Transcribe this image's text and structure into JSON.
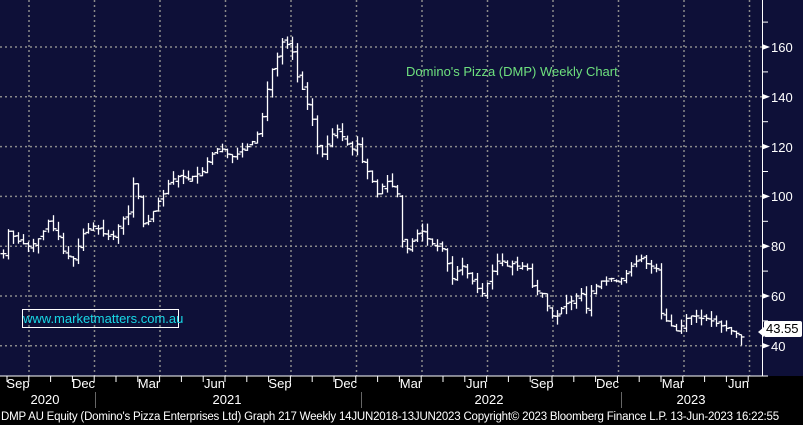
{
  "chart_data": {
    "type": "ohlc",
    "title": "Domino's Pizza (DMP) Weekly Chart",
    "watermark": "www.marketmatters.com.au",
    "ylim": [
      34,
      172
    ],
    "yticks": [
      40,
      60,
      80,
      100,
      120,
      140,
      160
    ],
    "last_price": "43.55",
    "month_labels": [
      "Sep",
      "Dec",
      "Mar",
      "Jun",
      "Sep",
      "Dec",
      "Mar",
      "Jun",
      "Sep",
      "Dec",
      "Mar",
      "Jun"
    ],
    "year_labels": [
      "2020",
      "2021",
      "2022",
      "2023"
    ],
    "grid": true,
    "closes": [
      77,
      86,
      84,
      82,
      81,
      80,
      81,
      83,
      86,
      90,
      87,
      84,
      78,
      76,
      75,
      80,
      85,
      87,
      88,
      87,
      85,
      84,
      84,
      88,
      91,
      93,
      105,
      100,
      89,
      90,
      94,
      98,
      101,
      105,
      107,
      108,
      108,
      107,
      108,
      109,
      110,
      114,
      117,
      119,
      119,
      117,
      116,
      117,
      119,
      120,
      122,
      125,
      132,
      143,
      151,
      156,
      162,
      161,
      158,
      148,
      143,
      137,
      131,
      120,
      117,
      121,
      125,
      127,
      124,
      121,
      119,
      121,
      114,
      110,
      106,
      101,
      104,
      106,
      104,
      101,
      82,
      79,
      82,
      85,
      86,
      83,
      81,
      80,
      79,
      73,
      67,
      70,
      72,
      69,
      66,
      63,
      61,
      65,
      70,
      74,
      74,
      72,
      73,
      72,
      72,
      71,
      64,
      62,
      61,
      56,
      52,
      52,
      55,
      57,
      58,
      60,
      61,
      55,
      62,
      64,
      66,
      66,
      67,
      66,
      67,
      69,
      72,
      74,
      75,
      73,
      72,
      71,
      53,
      50,
      48,
      46,
      48,
      51,
      52,
      52,
      51,
      51,
      50,
      49,
      48,
      47,
      46,
      45,
      43.55
    ]
  },
  "footer": "DMP AU Equity (Domino's Pizza Enterprises Ltd) Graph 217  Weekly 14JUN2018-13JUN2023 Copyright© 2023 Bloomberg Finance L.P. 13-Jun-2023 16:22:55",
  "colors": {
    "background": "#0e1038",
    "bars": "#ffffff",
    "title": "#6ee07e",
    "watermark": "#18d8e6"
  }
}
